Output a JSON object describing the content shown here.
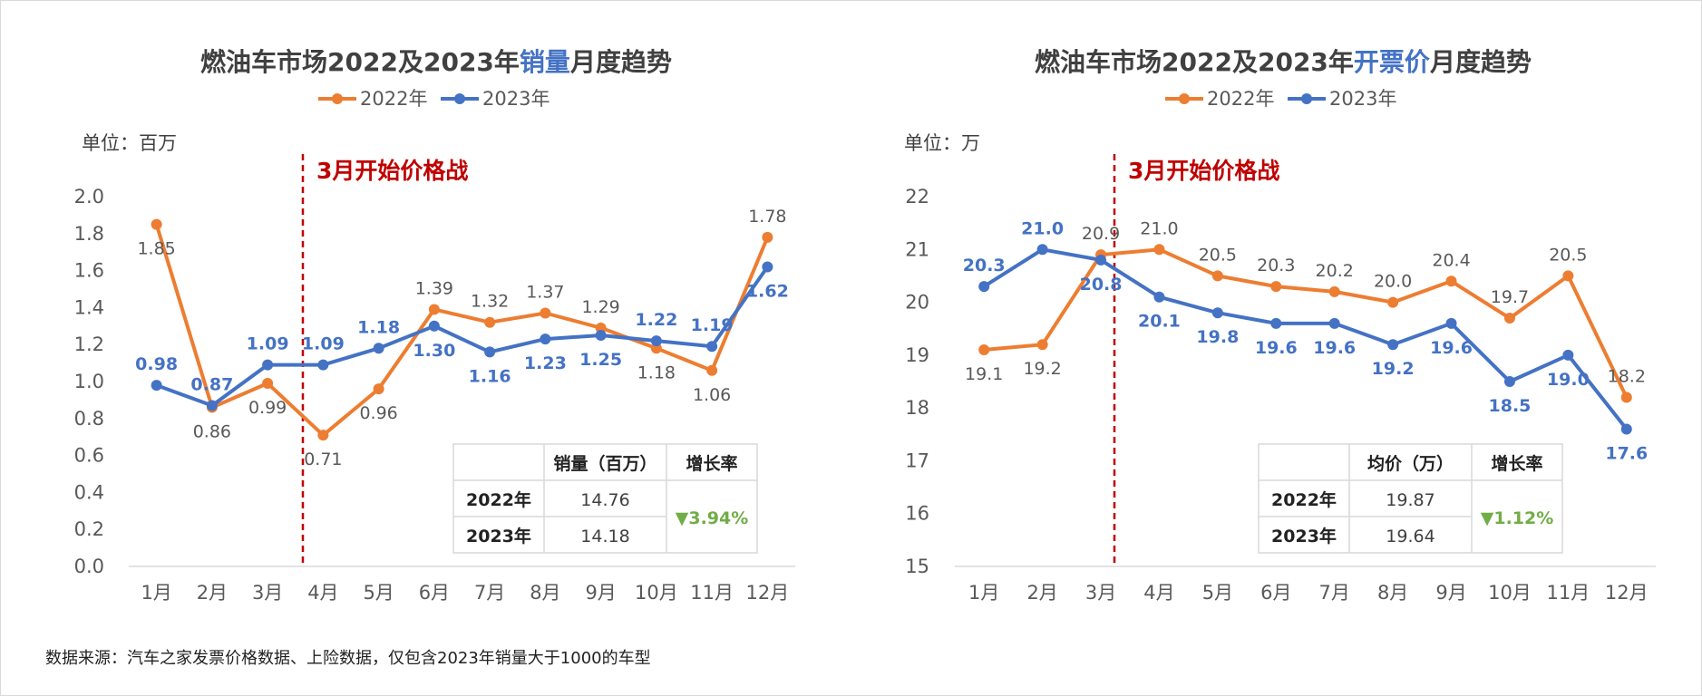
{
  "footnote": "数据来源：汽车之家发票价格数据、上险数据，仅包含2023年销量大于1000的车型",
  "colors": {
    "s2022": "#ED7D31",
    "s2023": "#4472C4",
    "annot": "#C00000",
    "down": "#70AD47",
    "axis": "#595959",
    "grid": "#D9D9D9"
  },
  "chart_data": [
    {
      "type": "line",
      "title": [
        "燃油车市场2022及2023年",
        "销量",
        "月度趋势"
      ],
      "unit_label": "单位：百万",
      "categories": [
        "1月",
        "2月",
        "3月",
        "4月",
        "5月",
        "6月",
        "7月",
        "8月",
        "9月",
        "10月",
        "11月",
        "12月"
      ],
      "ylim": [
        0,
        2.0
      ],
      "yticks": [
        "0.0",
        "0.2",
        "0.4",
        "0.6",
        "0.8",
        "1.0",
        "1.2",
        "1.4",
        "1.6",
        "1.8",
        "2.0"
      ],
      "series": [
        {
          "name": "2022年",
          "values": [
            1.85,
            0.86,
            0.99,
            0.71,
            0.96,
            1.39,
            1.32,
            1.37,
            1.29,
            1.18,
            1.06,
            1.78
          ],
          "labels": [
            "1.85",
            "0.86",
            "0.99",
            "0.71",
            "0.96",
            "1.39",
            "1.32",
            "1.37",
            "1.29",
            "1.18",
            "1.06",
            "1.78"
          ]
        },
        {
          "name": "2023年",
          "values": [
            0.98,
            0.87,
            1.09,
            1.09,
            1.18,
            1.3,
            1.16,
            1.23,
            1.25,
            1.22,
            1.19,
            1.62
          ],
          "labels": [
            "0.98",
            "0.87",
            "1.09",
            "1.09",
            "1.18",
            "1.30",
            "1.16",
            "1.23",
            "1.25",
            "1.22",
            "1.19",
            "1.62"
          ]
        }
      ],
      "annotation": {
        "text": "3月开始价格战"
      },
      "table": {
        "headers": [
          "",
          "销量（百万）",
          "增长率"
        ],
        "rows": [
          {
            "label": "2022年",
            "value": "14.76"
          },
          {
            "label": "2023年",
            "value": "14.18"
          }
        ],
        "growth": "▼3.94%"
      }
    },
    {
      "type": "line",
      "title": [
        "燃油车市场2022及2023年",
        "开票价",
        "月度趋势"
      ],
      "unit_label": "单位：万",
      "categories": [
        "1月",
        "2月",
        "3月",
        "4月",
        "5月",
        "6月",
        "7月",
        "8月",
        "9月",
        "10月",
        "11月",
        "12月"
      ],
      "ylim": [
        15,
        22
      ],
      "yticks": [
        "15",
        "16",
        "17",
        "18",
        "19",
        "20",
        "21",
        "22"
      ],
      "series": [
        {
          "name": "2022年",
          "values": [
            19.1,
            19.2,
            20.9,
            21.0,
            20.5,
            20.3,
            20.2,
            20.0,
            20.4,
            19.7,
            20.5,
            18.2
          ],
          "labels": [
            "19.1",
            "19.2",
            "20.9",
            "21.0",
            "20.5",
            "20.3",
            "20.2",
            "20.0",
            "20.4",
            "19.7",
            "20.5",
            "18.2"
          ]
        },
        {
          "name": "2023年",
          "values": [
            20.3,
            21.0,
            20.8,
            20.1,
            19.8,
            19.6,
            19.6,
            19.2,
            19.6,
            18.5,
            19.0,
            17.6
          ],
          "labels": [
            "20.3",
            "21.0",
            "20.8",
            "20.1",
            "19.8",
            "19.6",
            "19.6",
            "19.2",
            "19.6",
            "18.5",
            "19.0",
            "17.6"
          ]
        }
      ],
      "annotation": {
        "text": "3月开始价格战"
      },
      "table": {
        "headers": [
          "",
          "均价（万）",
          "增长率"
        ],
        "rows": [
          {
            "label": "2022年",
            "value": "19.87"
          },
          {
            "label": "2023年",
            "value": "19.64"
          }
        ],
        "growth": "▼1.12%"
      }
    }
  ]
}
